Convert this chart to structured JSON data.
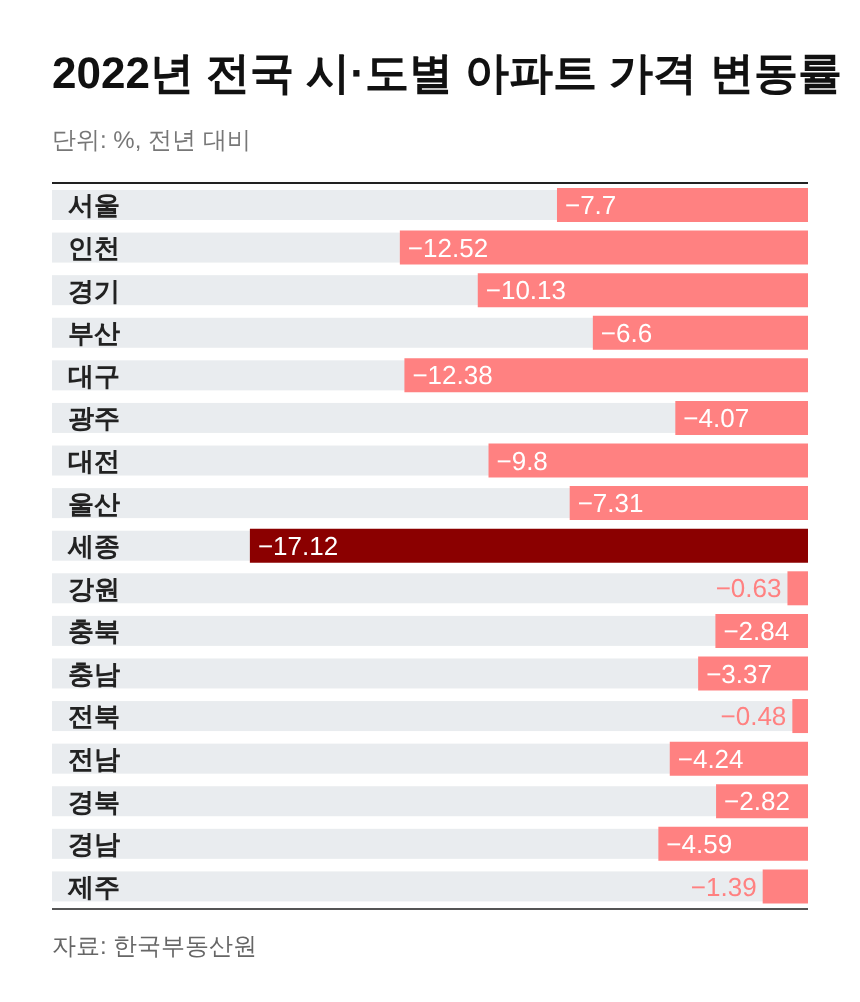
{
  "chart_data": {
    "type": "bar",
    "orientation": "horizontal",
    "title": "2022년 전국 시·도별 아파트 가격 변동률",
    "subtitle": "단위: %, 전년 대비",
    "categories": [
      "서울",
      "인천",
      "경기",
      "부산",
      "대구",
      "광주",
      "대전",
      "울산",
      "세종",
      "강원",
      "충북",
      "충남",
      "전북",
      "전남",
      "경북",
      "경남",
      "제주"
    ],
    "values": [
      -7.7,
      -12.52,
      -10.13,
      -6.6,
      -12.38,
      -4.07,
      -9.8,
      -7.31,
      -17.12,
      -0.63,
      -2.84,
      -3.37,
      -0.48,
      -4.24,
      -2.82,
      -4.59,
      -1.39
    ],
    "value_labels": [
      "−7.7",
      "−12.52",
      "−10.13",
      "−6.6",
      "−12.38",
      "−4.07",
      "−9.8",
      "−7.31",
      "−17.12",
      "−0.63",
      "−2.84",
      "−3.37",
      "−0.48",
      "−4.24",
      "−2.82",
      "−4.59",
      "−1.39"
    ],
    "colors": [
      "#ff8181",
      "#ff8181",
      "#ff8181",
      "#ff8181",
      "#ff8181",
      "#ff8181",
      "#ff8181",
      "#ff8181",
      "#8b0000",
      "#ff8181",
      "#ff8181",
      "#ff8181",
      "#ff8181",
      "#ff8181",
      "#ff8181",
      "#ff8181",
      "#ff8181"
    ],
    "tick_labels": "y",
    "annotations": [
      "자료: 한국부동산원"
    ]
  }
}
